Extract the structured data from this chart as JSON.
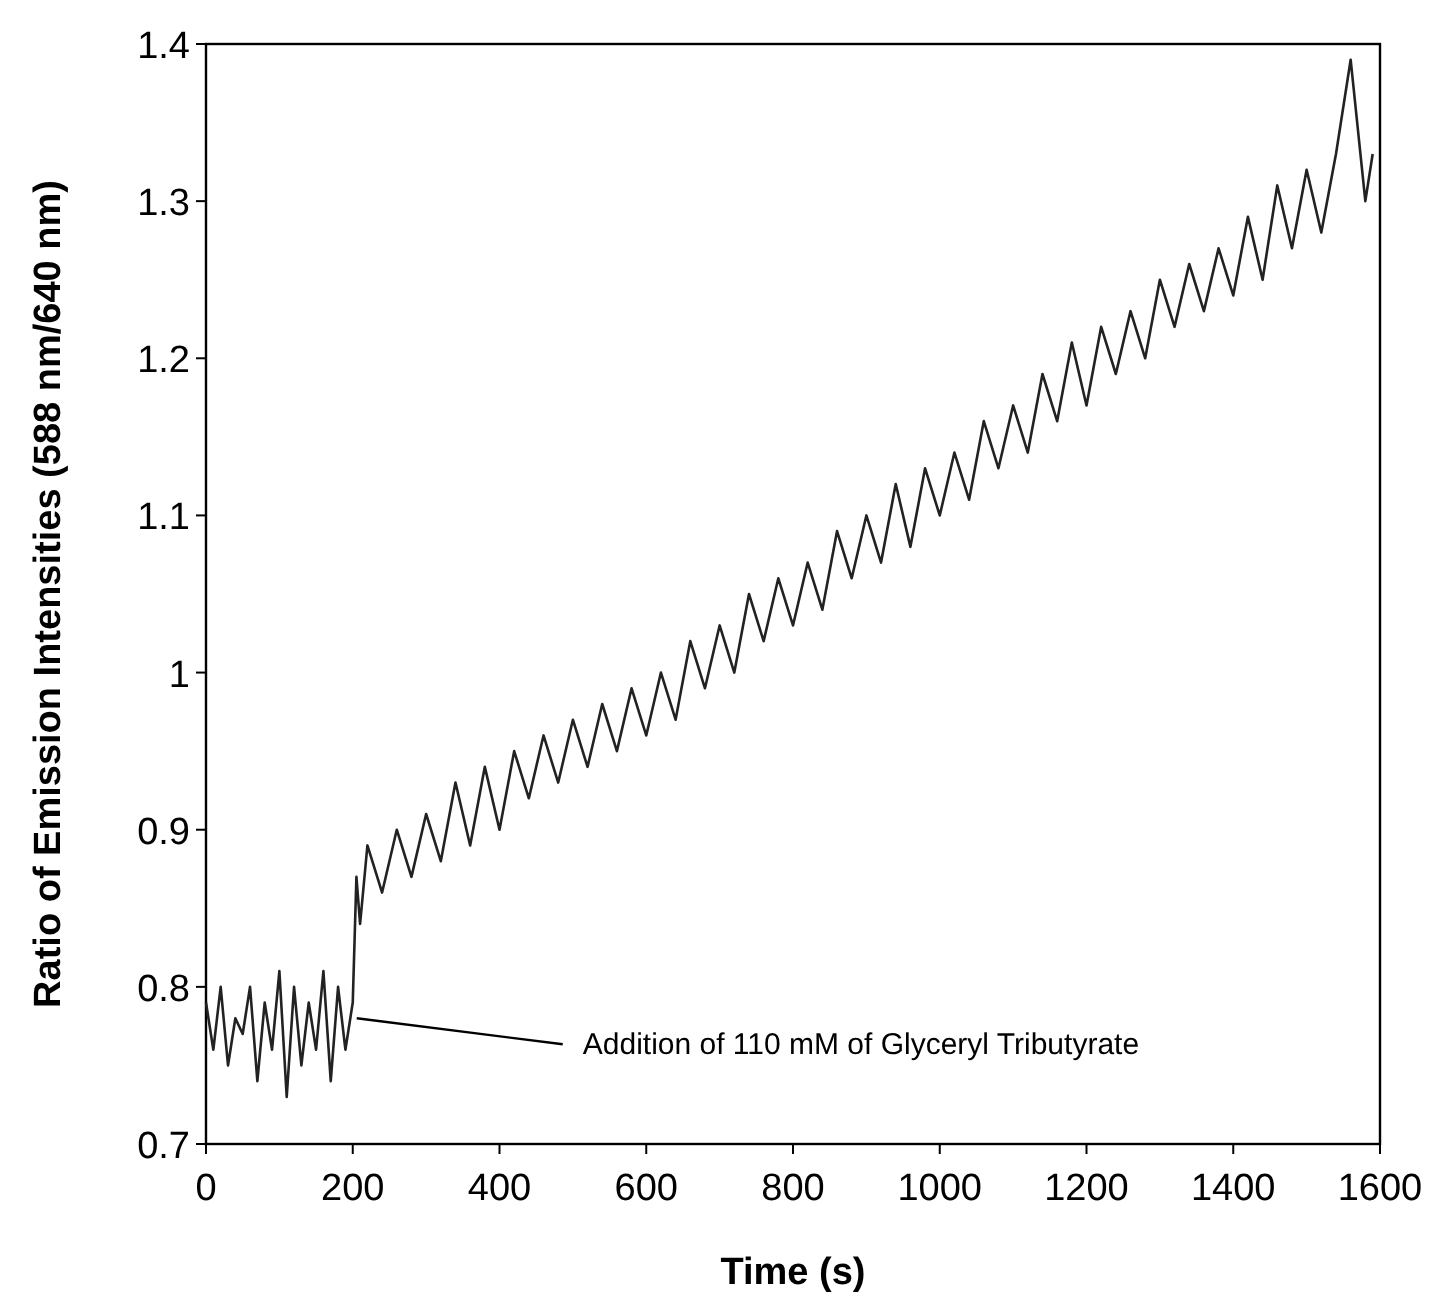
{
  "chart_data": {
    "type": "line",
    "xlabel": "Time (s)",
    "ylabel": "Ratio of Emission Intensities (588 nm/640 nm)",
    "x": [
      0,
      10,
      20,
      30,
      40,
      50,
      60,
      70,
      80,
      90,
      100,
      110,
      120,
      130,
      140,
      150,
      160,
      170,
      180,
      190,
      200,
      205,
      210,
      220,
      240,
      260,
      280,
      300,
      320,
      340,
      360,
      380,
      400,
      420,
      440,
      460,
      480,
      500,
      520,
      540,
      560,
      580,
      600,
      620,
      640,
      660,
      680,
      700,
      720,
      740,
      760,
      780,
      800,
      820,
      840,
      860,
      880,
      900,
      920,
      940,
      960,
      980,
      1000,
      1020,
      1040,
      1060,
      1080,
      1100,
      1120,
      1140,
      1160,
      1180,
      1200,
      1220,
      1240,
      1260,
      1280,
      1300,
      1320,
      1340,
      1360,
      1380,
      1400,
      1420,
      1440,
      1460,
      1480,
      1500,
      1520,
      1540,
      1560,
      1580,
      1590
    ],
    "series": [
      {
        "color": "#222222",
        "values": [
          0.79,
          0.76,
          0.8,
          0.75,
          0.78,
          0.77,
          0.8,
          0.74,
          0.79,
          0.76,
          0.81,
          0.73,
          0.8,
          0.75,
          0.79,
          0.76,
          0.81,
          0.74,
          0.8,
          0.76,
          0.79,
          0.87,
          0.84,
          0.89,
          0.86,
          0.9,
          0.87,
          0.91,
          0.88,
          0.93,
          0.89,
          0.94,
          0.9,
          0.95,
          0.92,
          0.96,
          0.93,
          0.97,
          0.94,
          0.98,
          0.95,
          0.99,
          0.96,
          1.0,
          0.97,
          1.02,
          0.99,
          1.03,
          1.0,
          1.05,
          1.02,
          1.06,
          1.03,
          1.07,
          1.04,
          1.09,
          1.06,
          1.1,
          1.07,
          1.12,
          1.08,
          1.13,
          1.1,
          1.14,
          1.11,
          1.16,
          1.13,
          1.17,
          1.14,
          1.19,
          1.16,
          1.21,
          1.17,
          1.22,
          1.19,
          1.23,
          1.2,
          1.25,
          1.22,
          1.26,
          1.23,
          1.27,
          1.24,
          1.29,
          1.25,
          1.31,
          1.27,
          1.32,
          1.28,
          1.33,
          1.39,
          1.3,
          1.33
        ]
      }
    ],
    "xlim": [
      0,
      1600
    ],
    "xticks": [
      0,
      200,
      400,
      600,
      800,
      1000,
      1200,
      1400,
      1600
    ],
    "ylim": [
      0.7,
      1.4
    ],
    "yticks": [
      0.7,
      0.8,
      0.9,
      {
        "value": 1,
        "label": "1"
      },
      1.1,
      1.2,
      1.3,
      1.4
    ],
    "annotations": [
      {
        "text": "Addition of 110 mM of Glyceryl Tributyrate",
        "x": 200,
        "y": 0.78
      }
    ],
    "grid": false
  }
}
